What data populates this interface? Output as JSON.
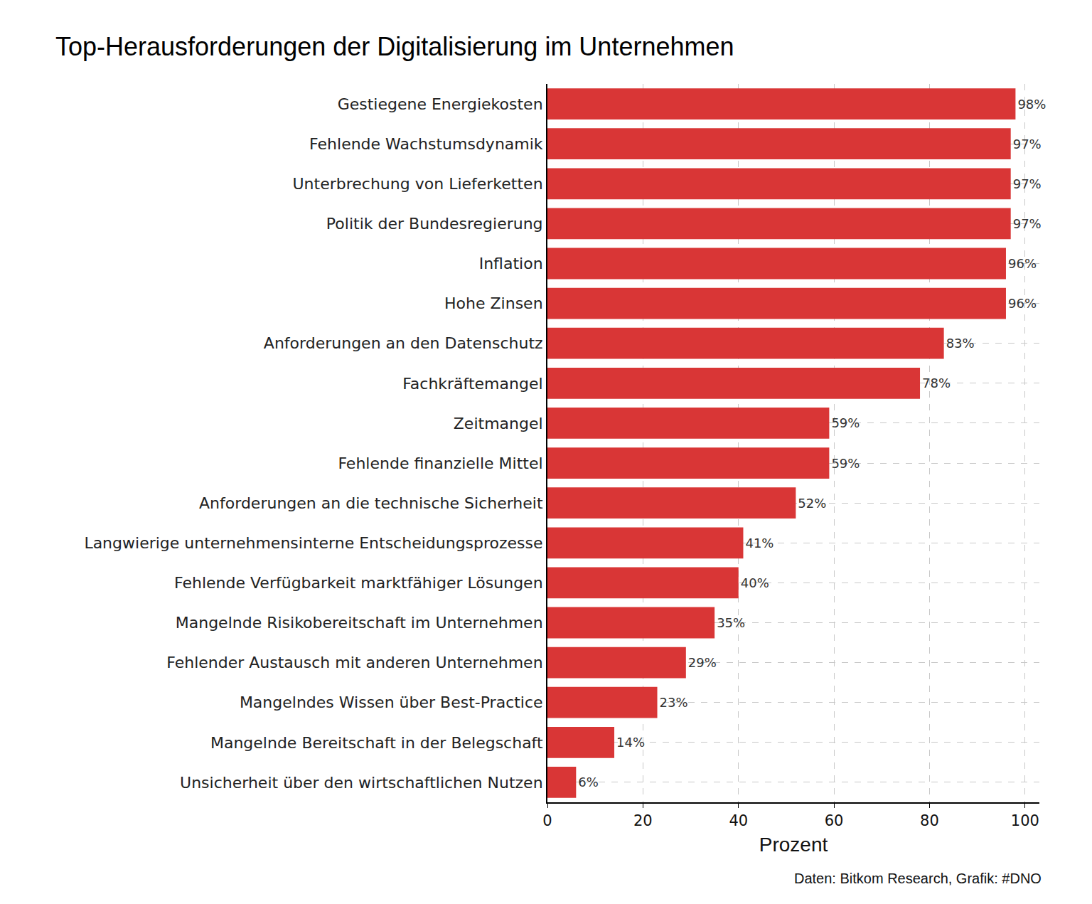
{
  "chart_data": {
    "type": "bar",
    "orientation": "horizontal",
    "title": "Top-Herausforderungen der Digitalisierung im Unternehmen",
    "xlabel": "Prozent",
    "source": "Daten: Bitkom Research, Grafik: #DNO",
    "categories": [
      "Gestiegene Energiekosten",
      "Fehlende Wachstumsdynamik",
      "Unterbrechung von Lieferketten",
      "Politik der Bundesregierung",
      "Inflation",
      "Hohe Zinsen",
      "Anforderungen an den Datenschutz",
      "Fachkräftemangel",
      "Zeitmangel",
      "Fehlende finanzielle Mittel",
      "Anforderungen an die technische Sicherheit",
      "Langwierige unternehmensinterne Entscheidungsprozesse",
      "Fehlende Verfügbarkeit marktfähiger Lösungen",
      "Mangelnde Risikobereitschaft im Unternehmen",
      "Fehlender Austausch mit anderen Unternehmen",
      "Mangelndes Wissen über Best-Practice",
      "Mangelnde Bereitschaft in der Belegschaft",
      "Unsicherheit über den wirtschaftlichen Nutzen"
    ],
    "values": [
      98,
      97,
      97,
      97,
      96,
      96,
      83,
      78,
      59,
      59,
      52,
      41,
      40,
      35,
      29,
      23,
      14,
      6
    ],
    "value_labels": [
      "98%",
      "97%",
      "97%",
      "97%",
      "96%",
      "96%",
      "83%",
      "78%",
      "59%",
      "59%",
      "52%",
      "41%",
      "40%",
      "35%",
      "29%",
      "23%",
      "14%",
      "6%"
    ],
    "color": "#d93636",
    "xlim": [
      0,
      103
    ],
    "xticks": [
      0,
      20,
      40,
      60,
      80,
      100
    ],
    "grid": true,
    "data_labels": true
  }
}
